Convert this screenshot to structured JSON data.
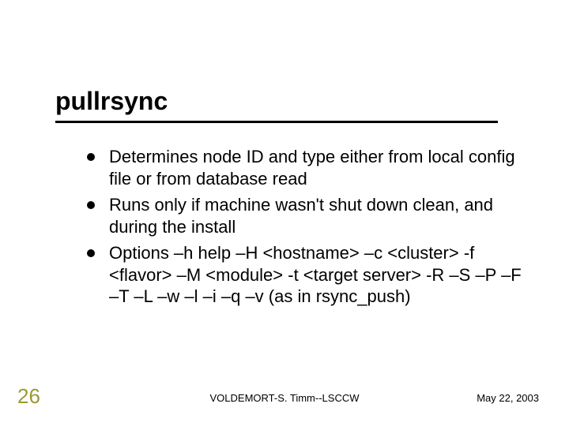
{
  "slide": {
    "title": "pullrsync",
    "title_fontsize": 32,
    "title_rule_color": "#000000",
    "bullets": [
      "Determines node ID and type either from local config file or from database read",
      "Runs only if machine wasn't shut down clean, and during the install",
      "Options –h help –H <hostname>  –c <cluster> -f <flavor>  –M <module> -t <target server> -R –S –P –F –T –L –w –l –i –q –v (as in rsync_push)"
    ],
    "bullet_fontsize": 22,
    "bullet_color": "#000000",
    "page_number": "26",
    "page_number_color": "#9a9a33",
    "footer_center": "VOLDEMORT-S. Timm--LSCCW",
    "footer_right": "May 22, 2003",
    "background_color": "#ffffff"
  }
}
